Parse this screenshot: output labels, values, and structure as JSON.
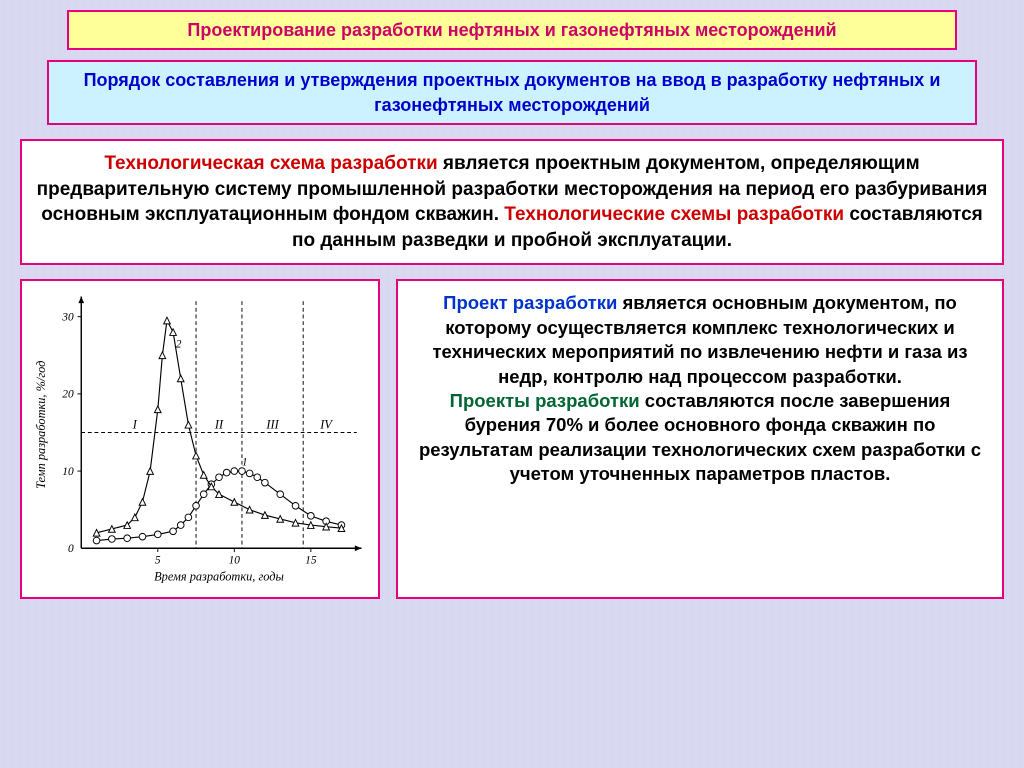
{
  "title1": "Проектирование  разработки нефтяных и газонефтяных месторождений",
  "title2": "Порядок составления и утверждения проектных документов на ввод в разработку нефтяных и газонефтяных месторождений",
  "para1": {
    "a": "Технологическая схема разработки",
    "b": " является проектным документом, определяющим предварительную систему промышленной разработки месторождения на период его разбуривания основным эксплуатационным фондом скважин. ",
    "c": "Технологические схемы разработки",
    "d": " составляются по данным разведки и пробной эксплуатации."
  },
  "para2": {
    "a": "Проект разработки",
    "b": " является основным документом, по которому осуществляется комплекс технологических и технических мероприятий по извлечению нефти и газа из недр, контролю над процессом разработки.",
    "c": "Проекты разработки",
    "d": " составляются после завершения бурения 70% и более основного фонда скважин по результатам реализации технологических схем разработки с учетом уточненных параметров пластов."
  },
  "chart": {
    "type": "line",
    "xlabel": "Время разработки, годы",
    "ylabel": "Темп разработки, %/год",
    "xlim": [
      0,
      18
    ],
    "ylim": [
      0,
      32
    ],
    "xticks": [
      5,
      10,
      15
    ],
    "yticks": [
      10,
      20,
      30
    ],
    "region_labels": [
      "I",
      "II",
      "III",
      "IV"
    ],
    "region_y": 15,
    "vlines_x": [
      7.5,
      10.5,
      14.5
    ],
    "hline_y": 15,
    "series1": {
      "label": "1",
      "marker": "circle",
      "x": [
        1,
        2,
        3,
        4,
        5,
        6,
        6.5,
        7,
        7.5,
        8,
        8.5,
        9,
        9.5,
        10,
        10.5,
        11,
        11.5,
        12,
        13,
        14,
        15,
        16,
        17
      ],
      "y": [
        1,
        1.2,
        1.3,
        1.5,
        1.8,
        2.2,
        3,
        4,
        5.5,
        7,
        8.3,
        9.2,
        9.8,
        10,
        10,
        9.7,
        9.2,
        8.5,
        7,
        5.5,
        4.2,
        3.5,
        3
      ]
    },
    "series2": {
      "label": "2",
      "marker": "triangle",
      "x": [
        1,
        2,
        3,
        3.5,
        4,
        4.5,
        5,
        5.3,
        5.6,
        6,
        6.5,
        7,
        7.5,
        8,
        8.5,
        9,
        10,
        11,
        12,
        13,
        14,
        15,
        16,
        17
      ],
      "y": [
        2,
        2.5,
        3,
        4,
        6,
        10,
        18,
        25,
        29.5,
        28,
        22,
        16,
        12,
        9.5,
        8,
        7,
        6,
        5,
        4.3,
        3.8,
        3.3,
        3,
        2.8,
        2.6
      ]
    },
    "colors": {
      "axis": "#000",
      "line": "#000",
      "text": "#000",
      "bg": "#ffffff"
    },
    "line_width": 1.2,
    "marker_size": 3.5,
    "axis_fontsize": 12,
    "label_fontsize": 13
  }
}
